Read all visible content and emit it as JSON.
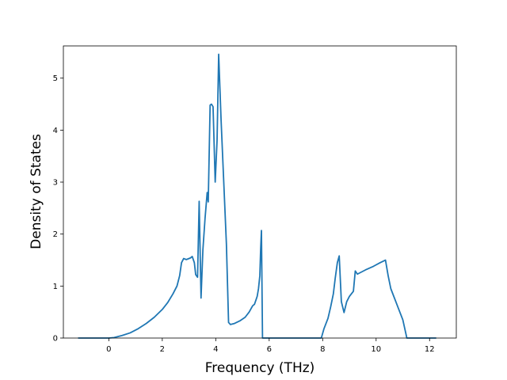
{
  "chart_data": {
    "type": "line",
    "title": "",
    "xlabel": "Frequency (THz)",
    "ylabel": "Density of States",
    "xlim": [
      -1.7,
      13.0
    ],
    "ylim": [
      0,
      5.62
    ],
    "x_ticks": [
      0,
      2,
      4,
      6,
      8,
      10,
      12
    ],
    "y_ticks": [
      0,
      1,
      2,
      3,
      4,
      5
    ],
    "grid": false,
    "legend": "none",
    "series": [
      {
        "color": "#1f77b4",
        "points": [
          [
            -1.15,
            0
          ],
          [
            0.0,
            0
          ],
          [
            0.2,
            0.01
          ],
          [
            0.5,
            0.05
          ],
          [
            0.8,
            0.1
          ],
          [
            1.1,
            0.18
          ],
          [
            1.4,
            0.28
          ],
          [
            1.7,
            0.4
          ],
          [
            2.0,
            0.55
          ],
          [
            2.2,
            0.68
          ],
          [
            2.4,
            0.85
          ],
          [
            2.55,
            1.0
          ],
          [
            2.65,
            1.2
          ],
          [
            2.72,
            1.45
          ],
          [
            2.8,
            1.53
          ],
          [
            2.9,
            1.51
          ],
          [
            3.05,
            1.54
          ],
          [
            3.12,
            1.57
          ],
          [
            3.2,
            1.45
          ],
          [
            3.25,
            1.22
          ],
          [
            3.32,
            1.17
          ],
          [
            3.38,
            2.63
          ],
          [
            3.45,
            0.77
          ],
          [
            3.52,
            1.7
          ],
          [
            3.6,
            2.3
          ],
          [
            3.68,
            2.8
          ],
          [
            3.72,
            2.62
          ],
          [
            3.79,
            4.48
          ],
          [
            3.84,
            4.5
          ],
          [
            3.9,
            4.45
          ],
          [
            3.98,
            3.0
          ],
          [
            4.05,
            3.8
          ],
          [
            4.11,
            5.46
          ],
          [
            4.2,
            4.2
          ],
          [
            4.3,
            3.0
          ],
          [
            4.4,
            1.8
          ],
          [
            4.48,
            0.3
          ],
          [
            4.55,
            0.26
          ],
          [
            4.7,
            0.28
          ],
          [
            4.9,
            0.33
          ],
          [
            5.1,
            0.4
          ],
          [
            5.25,
            0.5
          ],
          [
            5.38,
            0.62
          ],
          [
            5.45,
            0.65
          ],
          [
            5.55,
            0.8
          ],
          [
            5.6,
            0.95
          ],
          [
            5.65,
            1.2
          ],
          [
            5.68,
            1.7
          ],
          [
            5.71,
            2.07
          ],
          [
            5.75,
            0.0
          ],
          [
            7.95,
            0.0
          ],
          [
            8.05,
            0.18
          ],
          [
            8.2,
            0.38
          ],
          [
            8.3,
            0.6
          ],
          [
            8.4,
            0.85
          ],
          [
            8.47,
            1.15
          ],
          [
            8.55,
            1.45
          ],
          [
            8.62,
            1.58
          ],
          [
            8.7,
            0.7
          ],
          [
            8.8,
            0.49
          ],
          [
            8.9,
            0.7
          ],
          [
            9.0,
            0.8
          ],
          [
            9.15,
            0.9
          ],
          [
            9.22,
            1.29
          ],
          [
            9.3,
            1.23
          ],
          [
            9.6,
            1.31
          ],
          [
            9.9,
            1.38
          ],
          [
            10.15,
            1.45
          ],
          [
            10.35,
            1.5
          ],
          [
            10.45,
            1.2
          ],
          [
            10.55,
            0.95
          ],
          [
            10.7,
            0.75
          ],
          [
            10.85,
            0.55
          ],
          [
            11.0,
            0.35
          ],
          [
            11.15,
            0.0
          ],
          [
            12.25,
            0.0
          ]
        ]
      }
    ]
  }
}
